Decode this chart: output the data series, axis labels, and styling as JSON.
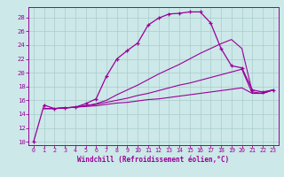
{
  "xlabel": "Windchill (Refroidissement éolien,°C)",
  "bg_color": "#cce8e8",
  "line_color": "#990099",
  "grid_color": "#aacccc",
  "xlim": [
    -0.5,
    23.5
  ],
  "ylim": [
    9.5,
    29.5
  ],
  "xticks": [
    0,
    1,
    2,
    3,
    4,
    5,
    6,
    7,
    8,
    9,
    10,
    11,
    12,
    13,
    14,
    15,
    16,
    17,
    18,
    19,
    20,
    21,
    22,
    23
  ],
  "yticks": [
    10,
    12,
    14,
    16,
    18,
    20,
    22,
    24,
    26,
    28
  ],
  "curve1_x": [
    0,
    1,
    2,
    3,
    4,
    5,
    6,
    7,
    8,
    9,
    10,
    11,
    12,
    13,
    14,
    15,
    16,
    17,
    18,
    19,
    20,
    21,
    22,
    23
  ],
  "curve1_y": [
    10.0,
    15.3,
    14.8,
    14.9,
    15.0,
    15.5,
    16.2,
    19.5,
    22.0,
    23.2,
    24.3,
    26.9,
    27.9,
    28.5,
    28.6,
    28.8,
    28.8,
    27.2,
    23.5,
    21.0,
    20.7,
    17.5,
    17.2,
    17.5
  ],
  "curve2_x": [
    1,
    2,
    3,
    4,
    5,
    6,
    7,
    8,
    9,
    10,
    11,
    12,
    13,
    14,
    15,
    16,
    17,
    18,
    19,
    20,
    21,
    22,
    23
  ],
  "curve2_y": [
    14.8,
    14.8,
    14.9,
    15.0,
    15.2,
    15.5,
    16.0,
    16.8,
    17.5,
    18.2,
    19.0,
    19.8,
    20.5,
    21.2,
    22.0,
    22.8,
    23.5,
    24.2,
    24.8,
    23.5,
    17.2,
    17.0,
    17.5
  ],
  "curve3_x": [
    1,
    2,
    3,
    4,
    5,
    6,
    7,
    8,
    9,
    10,
    11,
    12,
    13,
    14,
    15,
    16,
    17,
    18,
    19,
    20,
    21,
    22,
    23
  ],
  "curve3_y": [
    14.8,
    14.8,
    14.9,
    15.0,
    15.2,
    15.4,
    15.7,
    16.0,
    16.3,
    16.7,
    17.0,
    17.4,
    17.8,
    18.2,
    18.5,
    18.9,
    19.3,
    19.7,
    20.1,
    20.5,
    17.0,
    17.0,
    17.5
  ],
  "curve4_x": [
    1,
    2,
    3,
    4,
    5,
    6,
    7,
    8,
    9,
    10,
    11,
    12,
    13,
    14,
    15,
    16,
    17,
    18,
    19,
    20,
    21,
    22,
    23
  ],
  "curve4_y": [
    14.8,
    14.8,
    14.9,
    15.0,
    15.1,
    15.2,
    15.4,
    15.6,
    15.7,
    15.9,
    16.1,
    16.2,
    16.4,
    16.6,
    16.8,
    17.0,
    17.2,
    17.4,
    17.6,
    17.8,
    17.0,
    17.0,
    17.5
  ]
}
